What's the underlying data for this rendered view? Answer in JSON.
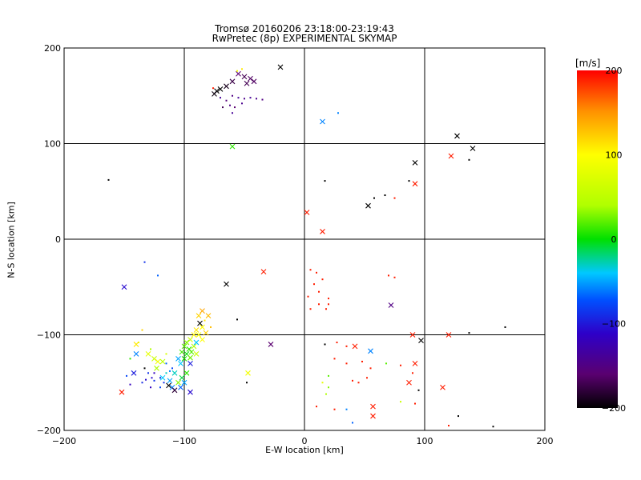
{
  "chart_data": {
    "type": "scatter",
    "title": "Tromsø 20160206 23:18:00-23:19:43",
    "subtitle": "RwPretec (8p) EXPERIMENTAL SKYMAP",
    "xlabel": "E-W location [km]",
    "ylabel": "N-S location [km]",
    "xlim": [
      -200,
      200
    ],
    "ylim": [
      -200,
      200
    ],
    "xticks": [
      -200,
      -100,
      0,
      100,
      200
    ],
    "yticks": [
      -200,
      -100,
      0,
      100,
      200
    ],
    "grid": true,
    "colorbar": {
      "label": "[m/s]",
      "range": [
        -200,
        200
      ],
      "ticks": [
        200,
        100,
        0,
        -100,
        -200
      ],
      "colormap": "black-purple-blue-cyan-green-yellow-orange-red"
    },
    "marker_types": [
      "cross",
      "dot"
    ],
    "points": [
      {
        "x": -20,
        "y": 180,
        "v": -200,
        "m": "x"
      },
      {
        "x": -55,
        "y": 173,
        "v": -160,
        "m": "x"
      },
      {
        "x": -50,
        "y": 170,
        "v": -170,
        "m": "x"
      },
      {
        "x": -45,
        "y": 168,
        "v": -165,
        "m": "x"
      },
      {
        "x": -60,
        "y": 165,
        "v": -175,
        "m": "x"
      },
      {
        "x": -48,
        "y": 163,
        "v": -170,
        "m": "x"
      },
      {
        "x": -65,
        "y": 160,
        "v": -190,
        "m": "x"
      },
      {
        "x": -70,
        "y": 157,
        "v": -200,
        "m": "x"
      },
      {
        "x": -73,
        "y": 155,
        "v": -200,
        "m": "x"
      },
      {
        "x": -75,
        "y": 152,
        "v": -195,
        "m": "x"
      },
      {
        "x": -42,
        "y": 165,
        "v": -165,
        "m": "x"
      },
      {
        "x": -52,
        "y": 178,
        "v": 110,
        "m": "d"
      },
      {
        "x": -56,
        "y": 176,
        "v": 90,
        "m": "d"
      },
      {
        "x": -60,
        "y": 150,
        "v": -150,
        "m": "d"
      },
      {
        "x": -55,
        "y": 148,
        "v": -140,
        "m": "d"
      },
      {
        "x": -50,
        "y": 147,
        "v": -145,
        "m": "d"
      },
      {
        "x": -45,
        "y": 148,
        "v": -140,
        "m": "d"
      },
      {
        "x": -40,
        "y": 147,
        "v": -145,
        "m": "d"
      },
      {
        "x": -35,
        "y": 146,
        "v": -150,
        "m": "d"
      },
      {
        "x": -65,
        "y": 145,
        "v": -155,
        "m": "d"
      },
      {
        "x": -62,
        "y": 140,
        "v": -150,
        "m": "d"
      },
      {
        "x": -58,
        "y": 138,
        "v": -160,
        "m": "d"
      },
      {
        "x": -52,
        "y": 142,
        "v": -145,
        "m": "d"
      },
      {
        "x": -68,
        "y": 138,
        "v": -170,
        "m": "d"
      },
      {
        "x": -60,
        "y": 132,
        "v": -140,
        "m": "d"
      },
      {
        "x": -76,
        "y": 158,
        "v": 190,
        "m": "d"
      },
      {
        "x": -70,
        "y": 148,
        "v": -140,
        "m": "d"
      },
      {
        "x": 15,
        "y": 123,
        "v": -60,
        "m": "x"
      },
      {
        "x": 28,
        "y": 132,
        "v": -60,
        "m": "d"
      },
      {
        "x": -60,
        "y": 97,
        "v": 10,
        "m": "x"
      },
      {
        "x": 127,
        "y": 108,
        "v": -200,
        "m": "x"
      },
      {
        "x": 140,
        "y": 95,
        "v": -200,
        "m": "x"
      },
      {
        "x": 122,
        "y": 87,
        "v": 190,
        "m": "x"
      },
      {
        "x": 137,
        "y": 83,
        "v": -200,
        "m": "d"
      },
      {
        "x": 92,
        "y": 80,
        "v": -200,
        "m": "x"
      },
      {
        "x": 92,
        "y": 58,
        "v": 190,
        "m": "x"
      },
      {
        "x": 87,
        "y": 61,
        "v": -200,
        "m": "d"
      },
      {
        "x": 75,
        "y": 43,
        "v": 190,
        "m": "d"
      },
      {
        "x": 67,
        "y": 46,
        "v": -200,
        "m": "d"
      },
      {
        "x": 58,
        "y": 43,
        "v": -200,
        "m": "d"
      },
      {
        "x": 53,
        "y": 35,
        "v": -200,
        "m": "x"
      },
      {
        "x": 17,
        "y": 61,
        "v": -200,
        "m": "d"
      },
      {
        "x": 2,
        "y": 28,
        "v": 190,
        "m": "x"
      },
      {
        "x": 15,
        "y": 8,
        "v": 190,
        "m": "x"
      },
      {
        "x": -163,
        "y": 62,
        "v": -200,
        "m": "d"
      },
      {
        "x": -150,
        "y": -50,
        "v": -110,
        "m": "x"
      },
      {
        "x": -133,
        "y": -24,
        "v": -90,
        "m": "d"
      },
      {
        "x": -122,
        "y": -38,
        "v": -70,
        "m": "d"
      },
      {
        "x": -65,
        "y": -47,
        "v": -200,
        "m": "x"
      },
      {
        "x": -34,
        "y": -34,
        "v": 190,
        "m": "x"
      },
      {
        "x": -56,
        "y": -84,
        "v": -200,
        "m": "d"
      },
      {
        "x": -28,
        "y": -110,
        "v": -160,
        "m": "x"
      },
      {
        "x": -47,
        "y": -140,
        "v": 90,
        "m": "x"
      },
      {
        "x": -48,
        "y": -150,
        "v": -200,
        "m": "d"
      },
      {
        "x": -85,
        "y": -75,
        "v": 140,
        "m": "x"
      },
      {
        "x": -88,
        "y": -80,
        "v": 120,
        "m": "x"
      },
      {
        "x": -80,
        "y": -80,
        "v": 130,
        "m": "x"
      },
      {
        "x": -83,
        "y": -85,
        "v": 110,
        "m": "d"
      },
      {
        "x": -87,
        "y": -88,
        "v": -200,
        "m": "x"
      },
      {
        "x": -85,
        "y": -92,
        "v": 100,
        "m": "x"
      },
      {
        "x": -90,
        "y": -95,
        "v": 110,
        "m": "x"
      },
      {
        "x": -92,
        "y": -100,
        "v": 105,
        "m": "x"
      },
      {
        "x": -88,
        "y": -100,
        "v": 95,
        "m": "x"
      },
      {
        "x": -95,
        "y": -105,
        "v": 60,
        "m": "x"
      },
      {
        "x": -98,
        "y": -108,
        "v": 30,
        "m": "x"
      },
      {
        "x": -100,
        "y": -112,
        "v": 20,
        "m": "x"
      },
      {
        "x": -96,
        "y": -115,
        "v": 10,
        "m": "x"
      },
      {
        "x": -92,
        "y": -112,
        "v": 40,
        "m": "x"
      },
      {
        "x": -94,
        "y": -118,
        "v": 20,
        "m": "x"
      },
      {
        "x": -98,
        "y": -120,
        "v": 0,
        "m": "x"
      },
      {
        "x": -102,
        "y": -118,
        "v": 15,
        "m": "x"
      },
      {
        "x": -100,
        "y": -125,
        "v": 5,
        "m": "x"
      },
      {
        "x": -95,
        "y": -124,
        "v": 25,
        "m": "x"
      },
      {
        "x": -90,
        "y": -120,
        "v": 60,
        "m": "x"
      },
      {
        "x": -90,
        "y": -108,
        "v": -40,
        "m": "x"
      },
      {
        "x": -85,
        "y": -105,
        "v": 100,
        "m": "x"
      },
      {
        "x": -82,
        "y": -98,
        "v": 120,
        "m": "x"
      },
      {
        "x": -78,
        "y": -92,
        "v": 130,
        "m": "d"
      },
      {
        "x": -103,
        "y": -130,
        "v": -40,
        "m": "x"
      },
      {
        "x": -105,
        "y": -125,
        "v": -50,
        "m": "x"
      },
      {
        "x": -95,
        "y": -130,
        "v": -100,
        "m": "x"
      },
      {
        "x": -98,
        "y": -140,
        "v": 10,
        "m": "x"
      },
      {
        "x": -102,
        "y": -145,
        "v": -10,
        "m": "x"
      },
      {
        "x": -108,
        "y": -140,
        "v": -30,
        "m": "x"
      },
      {
        "x": -112,
        "y": -148,
        "v": -50,
        "m": "x"
      },
      {
        "x": -118,
        "y": -145,
        "v": -40,
        "m": "x"
      },
      {
        "x": -110,
        "y": -155,
        "v": -60,
        "m": "x"
      },
      {
        "x": -103,
        "y": -155,
        "v": -70,
        "m": "x"
      },
      {
        "x": -100,
        "y": -150,
        "v": -50,
        "m": "x"
      },
      {
        "x": -105,
        "y": -150,
        "v": 30,
        "m": "x"
      },
      {
        "x": -115,
        "y": -140,
        "v": -30,
        "m": "d"
      },
      {
        "x": -113,
        "y": -153,
        "v": -200,
        "m": "x"
      },
      {
        "x": -108,
        "y": -158,
        "v": -180,
        "m": "x"
      },
      {
        "x": -95,
        "y": -160,
        "v": -110,
        "m": "x"
      },
      {
        "x": -123,
        "y": -135,
        "v": 40,
        "m": "x"
      },
      {
        "x": -125,
        "y": -125,
        "v": 60,
        "m": "x"
      },
      {
        "x": -130,
        "y": -120,
        "v": 80,
        "m": "x"
      },
      {
        "x": -128,
        "y": -115,
        "v": 40,
        "m": "d"
      },
      {
        "x": -122,
        "y": -128,
        "v": 90,
        "m": "x"
      },
      {
        "x": -118,
        "y": -128,
        "v": 50,
        "m": "x"
      },
      {
        "x": -115,
        "y": -120,
        "v": 70,
        "m": "d"
      },
      {
        "x": -140,
        "y": -120,
        "v": -60,
        "m": "x"
      },
      {
        "x": -145,
        "y": -125,
        "v": 10,
        "m": "d"
      },
      {
        "x": -138,
        "y": -108,
        "v": 80,
        "m": "d"
      },
      {
        "x": -140,
        "y": -110,
        "v": 110,
        "m": "x"
      },
      {
        "x": -135,
        "y": -95,
        "v": 120,
        "m": "d"
      },
      {
        "x": -142,
        "y": -140,
        "v": -100,
        "m": "x"
      },
      {
        "x": -148,
        "y": -143,
        "v": -80,
        "m": "d"
      },
      {
        "x": -145,
        "y": -152,
        "v": -120,
        "m": "d"
      },
      {
        "x": -133,
        "y": -135,
        "v": -200,
        "m": "d"
      },
      {
        "x": -130,
        "y": -140,
        "v": -90,
        "m": "d"
      },
      {
        "x": -127,
        "y": -145,
        "v": -110,
        "m": "d"
      },
      {
        "x": -125,
        "y": -140,
        "v": -120,
        "m": "d"
      },
      {
        "x": -120,
        "y": -145,
        "v": -100,
        "m": "d"
      },
      {
        "x": -135,
        "y": -150,
        "v": -95,
        "m": "d"
      },
      {
        "x": -132,
        "y": -147,
        "v": -110,
        "m": "d"
      },
      {
        "x": -125,
        "y": -148,
        "v": -90,
        "m": "d"
      },
      {
        "x": -115,
        "y": -130,
        "v": -70,
        "m": "d"
      },
      {
        "x": -110,
        "y": -135,
        "v": -80,
        "m": "d"
      },
      {
        "x": -128,
        "y": -155,
        "v": -120,
        "m": "d"
      },
      {
        "x": -112,
        "y": -138,
        "v": -60,
        "m": "d"
      },
      {
        "x": -120,
        "y": -155,
        "v": -80,
        "m": "d"
      },
      {
        "x": -117,
        "y": -150,
        "v": -90,
        "m": "d"
      },
      {
        "x": -152,
        "y": -160,
        "v": 190,
        "m": "x"
      },
      {
        "x": 5,
        "y": -32,
        "v": 190,
        "m": "d"
      },
      {
        "x": 10,
        "y": -35,
        "v": 190,
        "m": "d"
      },
      {
        "x": 15,
        "y": -42,
        "v": 190,
        "m": "d"
      },
      {
        "x": 8,
        "y": -47,
        "v": 190,
        "m": "d"
      },
      {
        "x": 12,
        "y": -55,
        "v": 190,
        "m": "d"
      },
      {
        "x": 3,
        "y": -60,
        "v": 190,
        "m": "d"
      },
      {
        "x": 20,
        "y": -62,
        "v": 190,
        "m": "d"
      },
      {
        "x": 12,
        "y": -68,
        "v": 190,
        "m": "d"
      },
      {
        "x": 5,
        "y": -73,
        "v": 190,
        "m": "d"
      },
      {
        "x": 20,
        "y": -68,
        "v": 190,
        "m": "d"
      },
      {
        "x": 18,
        "y": -73,
        "v": 190,
        "m": "d"
      },
      {
        "x": 70,
        "y": -38,
        "v": 190,
        "m": "d"
      },
      {
        "x": 75,
        "y": -40,
        "v": 190,
        "m": "d"
      },
      {
        "x": 72,
        "y": -69,
        "v": -150,
        "m": "x"
      },
      {
        "x": 90,
        "y": -100,
        "v": 190,
        "m": "x"
      },
      {
        "x": 97,
        "y": -106,
        "v": -200,
        "m": "x"
      },
      {
        "x": 120,
        "y": -100,
        "v": 190,
        "m": "x"
      },
      {
        "x": 137,
        "y": -98,
        "v": -200,
        "m": "d"
      },
      {
        "x": 167,
        "y": -92,
        "v": -200,
        "m": "d"
      },
      {
        "x": 42,
        "y": -112,
        "v": 190,
        "m": "x"
      },
      {
        "x": 55,
        "y": -117,
        "v": -60,
        "m": "x"
      },
      {
        "x": 35,
        "y": -112,
        "v": 190,
        "m": "d"
      },
      {
        "x": 27,
        "y": -108,
        "v": 190,
        "m": "d"
      },
      {
        "x": 17,
        "y": -110,
        "v": -200,
        "m": "d"
      },
      {
        "x": 25,
        "y": -125,
        "v": 190,
        "m": "d"
      },
      {
        "x": 35,
        "y": -130,
        "v": 190,
        "m": "d"
      },
      {
        "x": 48,
        "y": -128,
        "v": 190,
        "m": "d"
      },
      {
        "x": 55,
        "y": -135,
        "v": 190,
        "m": "d"
      },
      {
        "x": 68,
        "y": -130,
        "v": 20,
        "m": "d"
      },
      {
        "x": 80,
        "y": -132,
        "v": 190,
        "m": "d"
      },
      {
        "x": 92,
        "y": -130,
        "v": 190,
        "m": "x"
      },
      {
        "x": 90,
        "y": -140,
        "v": 190,
        "m": "d"
      },
      {
        "x": 87,
        "y": -150,
        "v": 190,
        "m": "x"
      },
      {
        "x": 20,
        "y": -143,
        "v": 20,
        "m": "d"
      },
      {
        "x": 15,
        "y": -150,
        "v": 80,
        "m": "d"
      },
      {
        "x": 20,
        "y": -155,
        "v": 30,
        "m": "d"
      },
      {
        "x": 18,
        "y": -162,
        "v": 40,
        "m": "d"
      },
      {
        "x": 40,
        "y": -148,
        "v": 190,
        "m": "d"
      },
      {
        "x": 45,
        "y": -150,
        "v": 190,
        "m": "d"
      },
      {
        "x": 52,
        "y": -145,
        "v": 190,
        "m": "d"
      },
      {
        "x": 95,
        "y": -158,
        "v": -200,
        "m": "d"
      },
      {
        "x": 115,
        "y": -155,
        "v": 190,
        "m": "x"
      },
      {
        "x": 80,
        "y": -170,
        "v": 60,
        "m": "d"
      },
      {
        "x": 92,
        "y": -172,
        "v": 190,
        "m": "d"
      },
      {
        "x": 57,
        "y": -175,
        "v": 190,
        "m": "x"
      },
      {
        "x": 57,
        "y": -185,
        "v": 190,
        "m": "x"
      },
      {
        "x": 35,
        "y": -178,
        "v": -60,
        "m": "d"
      },
      {
        "x": 10,
        "y": -175,
        "v": 190,
        "m": "d"
      },
      {
        "x": 25,
        "y": -178,
        "v": 190,
        "m": "d"
      },
      {
        "x": 40,
        "y": -192,
        "v": -70,
        "m": "d"
      },
      {
        "x": 128,
        "y": -185,
        "v": -200,
        "m": "d"
      },
      {
        "x": 120,
        "y": -195,
        "v": 190,
        "m": "d"
      },
      {
        "x": 157,
        "y": -196,
        "v": -200,
        "m": "d"
      }
    ]
  }
}
